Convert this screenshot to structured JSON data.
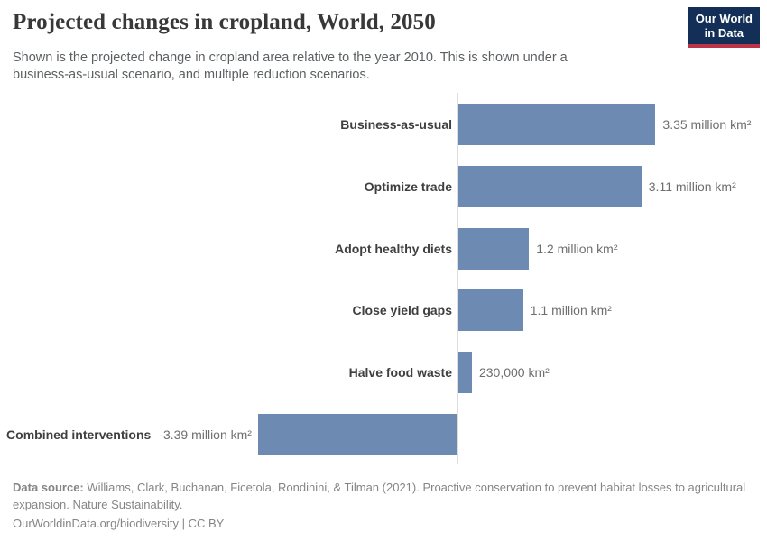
{
  "header": {
    "title": "Projected changes in cropland, World, 2050",
    "subtitle": "Shown is the projected change in cropland area relative to the year 2010. This is shown under a business-as-usual scenario, and multiple reduction scenarios.",
    "logo": {
      "line1": "Our World",
      "line2": "in Data"
    }
  },
  "chart_data": {
    "type": "bar",
    "orientation": "horizontal",
    "title": "Projected changes in cropland, World, 2050",
    "unit": "million km²",
    "categories": [
      "Business-as-usual",
      "Optimize trade",
      "Adopt healthy diets",
      "Close yield gaps",
      "Halve food waste",
      "Combined interventions"
    ],
    "values": [
      3.35,
      3.11,
      1.2,
      1.1,
      0.23,
      -3.39
    ],
    "value_labels": [
      "3.35 million km²",
      "3.11 million km²",
      "1.2 million km²",
      "1.1 million km²",
      "230,000 km²",
      "-3.39 million km²"
    ],
    "xlim": [
      -3.39,
      3.35
    ],
    "grid": false,
    "legend_position": "none"
  },
  "footer": {
    "source_label": "Data source:",
    "source_text": " Williams, Clark, Buchanan, Ficetola, Rondinini, & Tilman (2021). Proactive conservation to prevent habitat losses to agricultural expansion. Nature Sustainability.",
    "link_text": "OurWorldinData.org/biodiversity | CC BY"
  },
  "colors": {
    "bar": "#6d8ab3",
    "axis_line": "#dedede",
    "title": "#383838",
    "subtitle": "#5b5f61",
    "category_label": "#3f3f3f",
    "value_label": "#6e6e6e",
    "footer_text": "#858585",
    "logo_background": "#132f57",
    "logo_accent": "#bc3448"
  }
}
